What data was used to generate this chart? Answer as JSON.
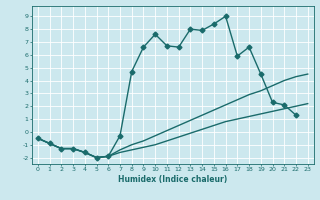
{
  "xlabel": "Humidex (Indice chaleur)",
  "xlim": [
    -0.5,
    23.5
  ],
  "ylim": [
    -2.5,
    9.8
  ],
  "xticks": [
    0,
    1,
    2,
    3,
    4,
    5,
    6,
    7,
    8,
    9,
    10,
    11,
    12,
    13,
    14,
    15,
    16,
    17,
    18,
    19,
    20,
    21,
    22,
    23
  ],
  "yticks": [
    -2,
    -1,
    0,
    1,
    2,
    3,
    4,
    5,
    6,
    7,
    8,
    9
  ],
  "bg_color": "#cce8ee",
  "line_color": "#1a6b6b",
  "grid_color": "#ffffff",
  "lines": [
    {
      "x": [
        0,
        1,
        2,
        3,
        4,
        5,
        6,
        7,
        8,
        9,
        10,
        11,
        12,
        13,
        14,
        15,
        16,
        17,
        18,
        19,
        20,
        21,
        22
      ],
      "y": [
        -0.5,
        -0.9,
        -1.3,
        -1.3,
        -1.6,
        -2.0,
        -1.9,
        -0.3,
        4.7,
        6.6,
        7.6,
        6.7,
        6.6,
        8.0,
        7.9,
        8.4,
        9.0,
        5.9,
        6.6,
        4.5,
        2.3,
        2.1,
        1.3
      ],
      "marker": "D",
      "markersize": 2.5,
      "linewidth": 1.0,
      "has_marker": true
    },
    {
      "x": [
        0,
        1,
        2,
        3,
        4,
        5,
        6,
        7,
        8,
        9,
        10,
        11,
        12,
        13,
        14,
        15,
        16,
        17,
        18,
        19,
        20,
        21,
        22,
        23
      ],
      "y": [
        -0.5,
        -0.9,
        -1.3,
        -1.3,
        -1.6,
        -2.0,
        -1.9,
        -1.4,
        -1.0,
        -0.7,
        -0.3,
        0.1,
        0.5,
        0.9,
        1.3,
        1.7,
        2.1,
        2.5,
        2.9,
        3.2,
        3.6,
        4.0,
        4.3,
        4.5
      ],
      "marker": null,
      "markersize": 0,
      "linewidth": 1.0,
      "has_marker": false
    },
    {
      "x": [
        0,
        1,
        2,
        3,
        4,
        5,
        6,
        7,
        8,
        9,
        10,
        11,
        12,
        13,
        14,
        15,
        16,
        17,
        18,
        19,
        20,
        21,
        22,
        23
      ],
      "y": [
        -0.5,
        -0.9,
        -1.3,
        -1.3,
        -1.6,
        -2.0,
        -1.9,
        -1.6,
        -1.4,
        -1.2,
        -1.0,
        -0.7,
        -0.4,
        -0.1,
        0.2,
        0.5,
        0.8,
        1.0,
        1.2,
        1.4,
        1.6,
        1.8,
        2.0,
        2.2
      ],
      "marker": null,
      "markersize": 0,
      "linewidth": 1.0,
      "has_marker": false
    }
  ]
}
